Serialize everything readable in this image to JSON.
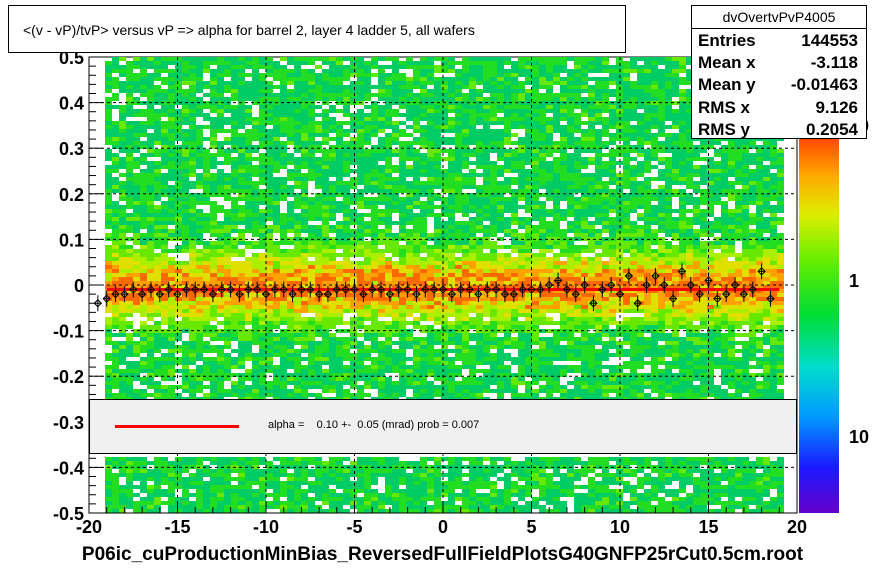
{
  "title": "<(v - vP)/tvP> versus   vP => alpha for barrel 2, layer 4 ladder 5, all wafers",
  "stats": {
    "name": "dvOvertvPvP4005",
    "rows": [
      {
        "label": "Entries",
        "value": "144553"
      },
      {
        "label": "Mean x",
        "value": "-3.118"
      },
      {
        "label": "Mean y",
        "value": "-0.01463"
      },
      {
        "label": "RMS x",
        "value": "9.126"
      },
      {
        "label": "RMS y",
        "value": "0.2054"
      }
    ]
  },
  "fit": {
    "text": "alpha =    0.10 +-  0.05 (mrad) prob = 0.007",
    "line_color": "#ff0000"
  },
  "footer": "P06ic_cuProductionMinBias_ReversedFullFieldPlotsG40GNFP25rCut0.5cm.root",
  "colorbar": {
    "labels": [
      "10",
      "1",
      "10"
    ]
  },
  "chart_data": {
    "type": "heatmap",
    "title": "<(v - vP)/tvP> versus   vP => alpha for barrel 2, layer 4 ladder 5, all wafers",
    "xlim": [
      -20,
      20
    ],
    "ylim": [
      -0.5,
      0.5
    ],
    "x_ticks": [
      "-20",
      "-15",
      "-10",
      "-5",
      "0",
      "5",
      "10",
      "15",
      "20"
    ],
    "y_ticks": [
      "-0.5",
      "-0.4",
      "-0.3",
      "-0.2",
      "-0.1",
      "0",
      "0.1",
      "0.2",
      "0.3",
      "0.4",
      "0.5"
    ],
    "grid": true,
    "fit_line": {
      "y": -0.01,
      "x_range": [
        -19,
        19
      ]
    },
    "profile_points": {
      "x": [
        -19.5,
        -19,
        -18.5,
        -18,
        -17.5,
        -17,
        -16.5,
        -16,
        -15.5,
        -15,
        -14.5,
        -14,
        -13.5,
        -13,
        -12.5,
        -12,
        -11.5,
        -11,
        -10.5,
        -10,
        -9.5,
        -9,
        -8.5,
        -8,
        -7.5,
        -7,
        -6.5,
        -6,
        -5.5,
        -5,
        -4.5,
        -4,
        -3.5,
        -3,
        -2.5,
        -2,
        -1.5,
        -1,
        -0.5,
        0,
        0.5,
        1,
        1.5,
        2,
        2.5,
        3,
        3.5,
        4,
        4.5,
        5,
        5.5,
        6,
        6.5,
        7,
        7.5,
        8,
        8.5,
        9,
        9.5,
        10,
        10.5,
        11,
        11.5,
        12,
        12.5,
        13,
        13.5,
        14,
        14.5,
        15,
        15.5,
        16,
        16.5,
        17,
        17.5,
        18,
        18.5
      ],
      "y": [
        -0.04,
        -0.03,
        -0.02,
        -0.02,
        -0.01,
        -0.02,
        -0.01,
        -0.02,
        -0.01,
        -0.02,
        -0.01,
        -0.01,
        -0.01,
        -0.02,
        -0.01,
        -0.01,
        -0.02,
        -0.01,
        -0.01,
        -0.02,
        -0.01,
        -0.01,
        -0.02,
        -0.01,
        -0.01,
        -0.02,
        -0.02,
        -0.01,
        -0.01,
        -0.01,
        -0.02,
        -0.01,
        -0.01,
        -0.02,
        -0.01,
        -0.01,
        -0.02,
        -0.01,
        -0.01,
        -0.01,
        -0.02,
        -0.01,
        -0.01,
        -0.02,
        -0.01,
        -0.01,
        -0.02,
        -0.02,
        -0.01,
        -0.01,
        -0.01,
        0.0,
        0.01,
        -0.01,
        -0.02,
        0.0,
        -0.04,
        -0.01,
        0.0,
        -0.02,
        0.02,
        -0.04,
        0.0,
        0.02,
        0.0,
        -0.03,
        0.03,
        0.0,
        -0.02,
        0.01,
        -0.03,
        -0.02,
        0.0,
        -0.02,
        -0.01,
        0.03,
        -0.03
      ]
    },
    "colorbar": {
      "scale": "log",
      "labels": [
        "10",
        "1",
        "10"
      ]
    }
  }
}
